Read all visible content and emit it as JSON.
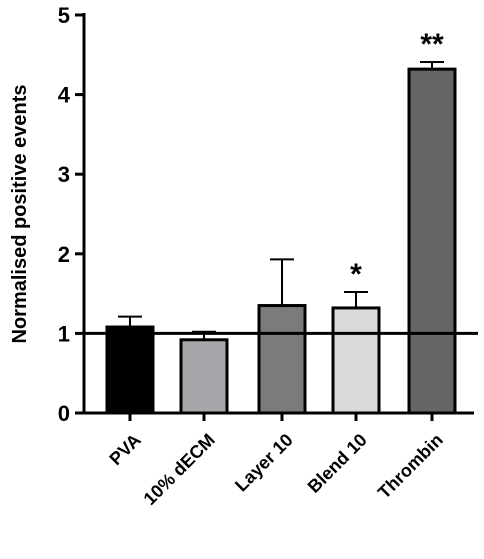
{
  "chart_data": {
    "type": "bar",
    "title": "",
    "xlabel": "",
    "ylabel": "Normalised positive events",
    "ylim": [
      0,
      5
    ],
    "yticks": [
      0,
      1,
      2,
      3,
      4,
      5
    ],
    "reference_line": 1,
    "categories": [
      "PVA",
      "10% dECM",
      "Layer 10",
      "Blend 10",
      "Thrombin"
    ],
    "values": [
      1.08,
      0.92,
      1.35,
      1.32,
      4.32
    ],
    "errors": [
      0.13,
      0.1,
      0.58,
      0.2,
      0.09
    ],
    "colors": [
      "#000000",
      "#a6a6ab",
      "#7b7b7b",
      "#d9d9d9",
      "#656565"
    ],
    "significance": [
      "",
      "",
      "",
      "*",
      "**"
    ],
    "grid": false
  }
}
